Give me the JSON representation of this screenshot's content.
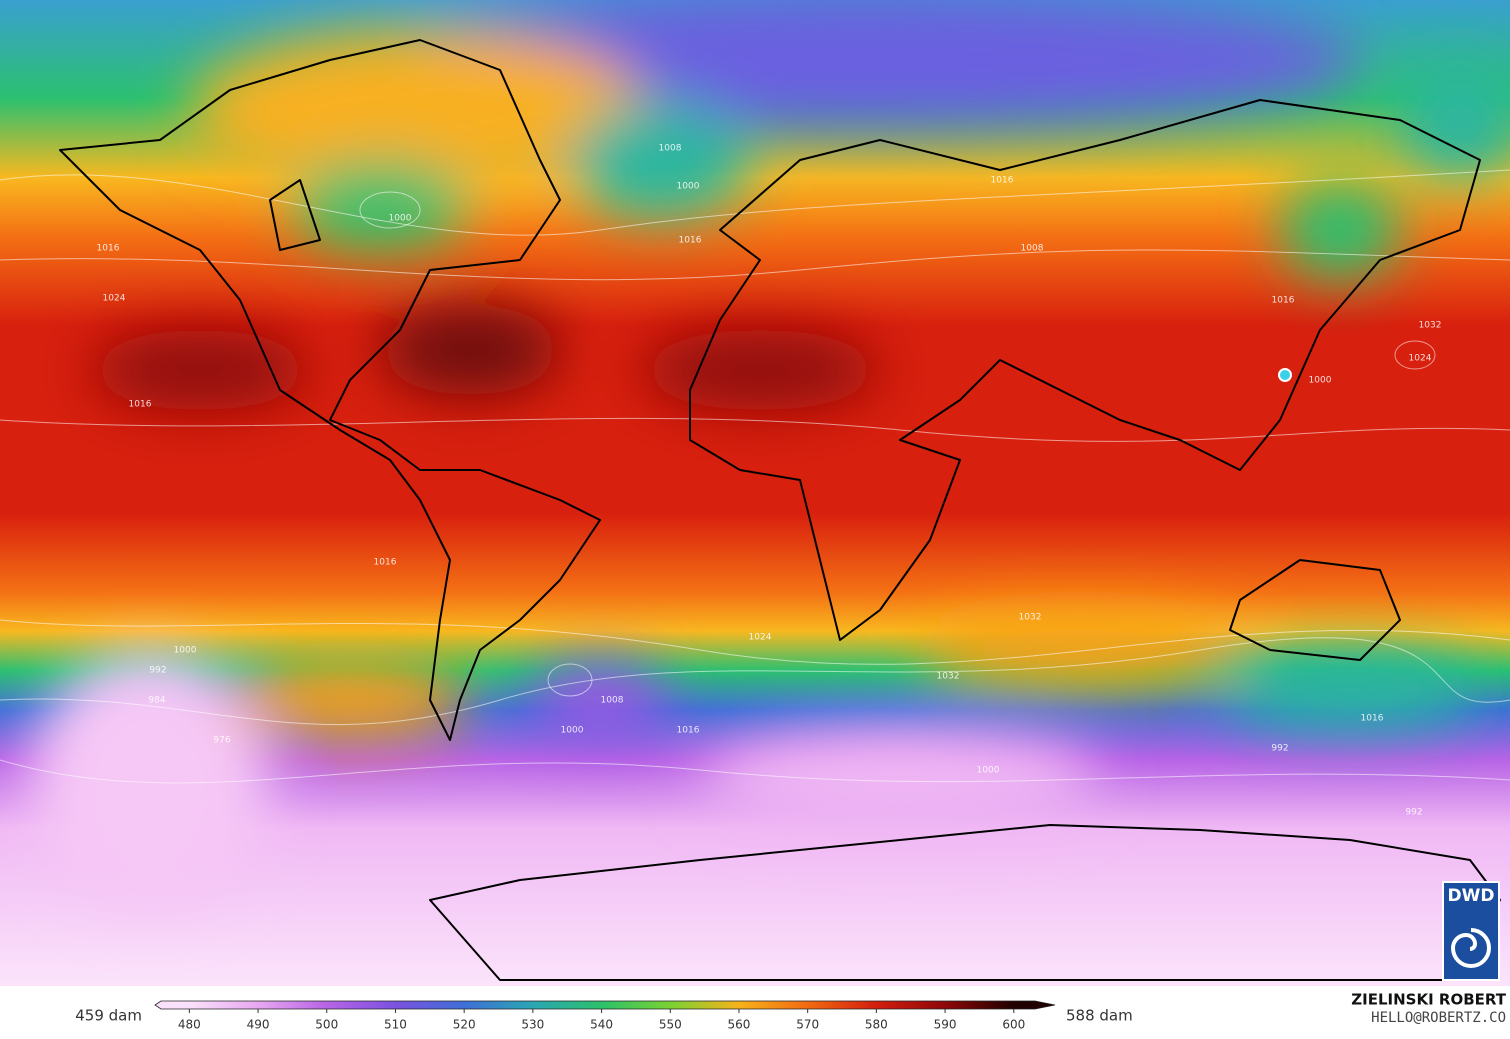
{
  "map": {
    "isobar_labels": [
      "1008",
      "1000",
      "1000",
      "1016",
      "1016",
      "1024",
      "1016",
      "1016",
      "1008",
      "1000",
      "1016",
      "1016",
      "1024",
      "1032",
      "1000",
      "992",
      "984",
      "976",
      "1008",
      "1000",
      "1016",
      "1032",
      "1024",
      "1032",
      "992",
      "1016",
      "992",
      "1000"
    ],
    "logo": "DWD"
  },
  "colorbar": {
    "min_label": "459 dam",
    "max_label": "588 dam",
    "lim": [
      475,
      606
    ],
    "ticks": [
      480,
      490,
      500,
      510,
      520,
      530,
      540,
      550,
      560,
      570,
      580,
      590,
      600
    ],
    "colors": [
      "#fbe0fb",
      "#e7a8f0",
      "#b763e6",
      "#7b52e0",
      "#3f6fd6",
      "#2aa6b4",
      "#2cc16a",
      "#7ad234",
      "#f7b21a",
      "#f26a12",
      "#d21e0e",
      "#8e0808",
      "#200000"
    ]
  },
  "credit": {
    "author": "ZIELINSKI ROBERT",
    "contact": "HELLO@ROBERTZ.CO"
  }
}
